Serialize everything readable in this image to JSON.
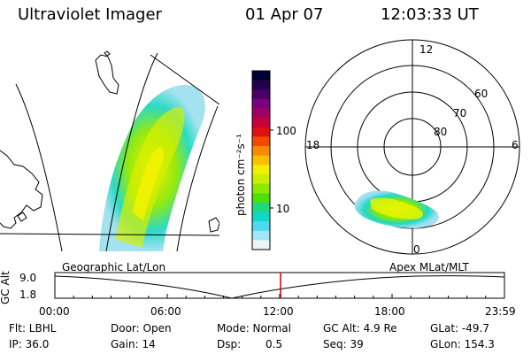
{
  "header": {
    "instrument": "Ultraviolet Imager",
    "date": "01 Apr 07",
    "time": "12:03:33 UT"
  },
  "colorbar": {
    "label": "photon cm⁻²s⁻¹",
    "ticks": [
      "100",
      "10"
    ],
    "colors": [
      "#000033",
      "#22004a",
      "#4a0066",
      "#7a0080",
      "#a00060",
      "#c8003a",
      "#e01010",
      "#f04a00",
      "#f88a00",
      "#f8c000",
      "#f0f000",
      "#c8f000",
      "#90e800",
      "#50e000",
      "#20d880",
      "#10d8c8",
      "#50d8f0",
      "#a0e8f8",
      "#e8f4f8"
    ]
  },
  "polar": {
    "mlt_labels": {
      "top": "12",
      "left": "18",
      "right": "6",
      "bottom": "0"
    },
    "lat_labels": [
      "60",
      "70",
      "80"
    ]
  },
  "timeline": {
    "label_geo": "Geographic Lat/Lon",
    "label_apex": "Apex MLat/MLT",
    "ylabel": "GC Alt",
    "ytick_top": "9.0",
    "ytick_bottom": "1.8",
    "x_ticks": [
      "00:00",
      "06:00",
      "12:00",
      "18:00",
      "23:59"
    ],
    "current_time_fraction": 0.502
  },
  "status": {
    "flt": "Flt: LBHL",
    "ip": "IP: 36.0",
    "door": "Door: Open",
    "gain": "Gain: 14",
    "mode": "Mode: Normal",
    "dsp_label": "Dsp:",
    "dsp_value": "0.5",
    "gc_alt": "GC Alt: 4.9 Re",
    "seq": "Seq: 39",
    "glat": "GLat: -49.7",
    "glon": "GLon: 154.3"
  }
}
